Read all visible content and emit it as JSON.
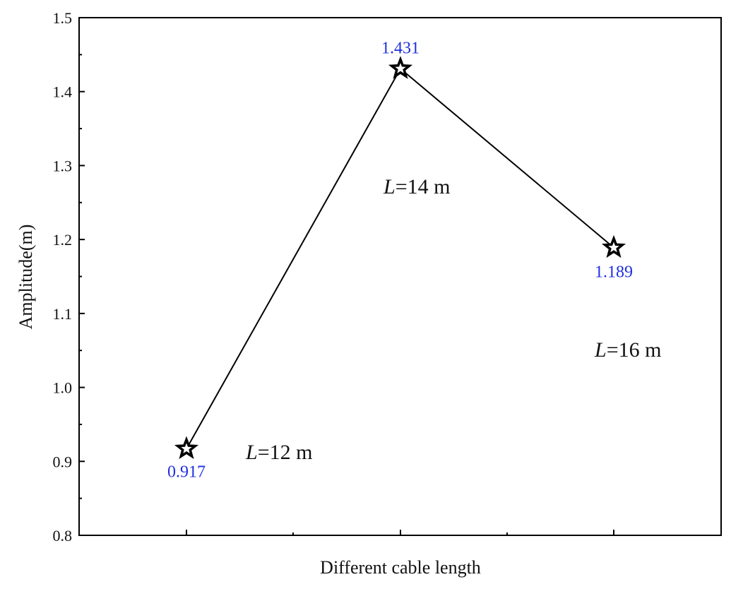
{
  "chart_data": {
    "type": "line",
    "title": "",
    "xlabel": "Different cable length",
    "ylabel": "Amplitude(m)",
    "categories": [
      "L=12 m",
      "L=14 m",
      "L=16 m"
    ],
    "series": [
      {
        "values": [
          0.917,
          1.431,
          1.189
        ]
      }
    ],
    "data_labels": [
      "0.917",
      "1.431",
      "1.189"
    ],
    "annotations": [
      {
        "italic": "L",
        "rest": "=12 m"
      },
      {
        "italic": "L",
        "rest": "=14 m"
      },
      {
        "italic": "L",
        "rest": "=16 m"
      }
    ],
    "ylim": [
      0.8,
      1.5
    ],
    "yticks": [
      "0.8",
      "0.9",
      "1.0",
      "1.1",
      "1.2",
      "1.3",
      "1.4",
      "1.5"
    ],
    "marker": "star",
    "grid": false,
    "colors": {
      "line": "#000000",
      "data_label": "#1f2fe0"
    }
  }
}
